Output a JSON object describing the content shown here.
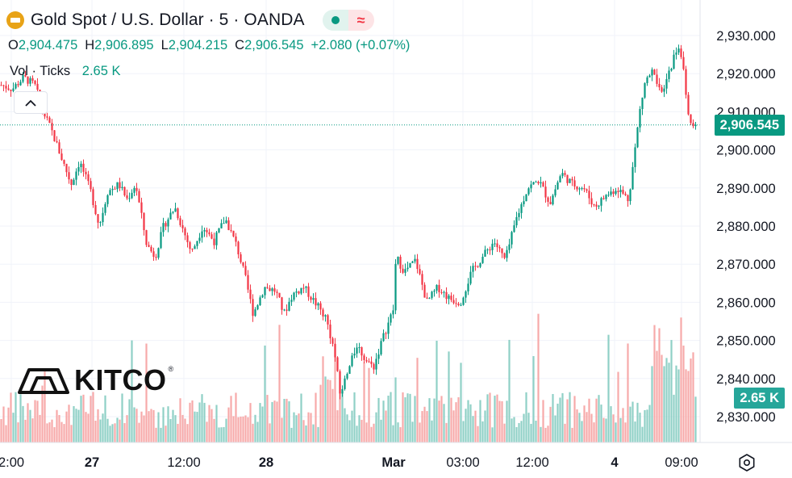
{
  "header": {
    "symbol_title": "Gold Spot / U.S. Dollar · 5 · OANDA",
    "ohlc": [
      {
        "key": "O",
        "value": "2,904.475"
      },
      {
        "key": "H",
        "value": "2,906.895"
      },
      {
        "key": "L",
        "value": "2,904.215"
      },
      {
        "key": "C",
        "value": "2,906.545"
      }
    ],
    "change": "+2.080 (+0.07%)",
    "volume_label": "Vol · Ticks",
    "volume_value": "2.65 K"
  },
  "price_tag": {
    "value": "2,906.545",
    "color": "#089981"
  },
  "volume_tag": {
    "value": "2.65 K",
    "color": "#26a69a"
  },
  "watermark": {
    "text": "KITCO",
    "registered": "®"
  },
  "colors": {
    "up": "#089981",
    "down": "#f23645",
    "vol_up": "#8fd0c6",
    "vol_down": "#f7a9a9",
    "grid": "#f0f3fa",
    "text": "#131722"
  },
  "chart_data": {
    "type": "candlestick",
    "title": "Gold Spot / U.S. Dollar · 5 · OANDA",
    "y_axis": {
      "ticks": [
        "2,930.000",
        "2,920.000",
        "2,910.000",
        "2,900.000",
        "2,890.000",
        "2,880.000",
        "2,870.000",
        "2,860.000",
        "2,850.000",
        "2,840.000",
        "2,830.000"
      ],
      "tick_values": [
        2930,
        2920,
        2910,
        2900,
        2890,
        2880,
        2870,
        2860,
        2850,
        2840,
        2830
      ],
      "range": [
        2825.5,
        2938.5
      ]
    },
    "x_axis": {
      "ticks": [
        "2:00",
        "27",
        "12:00",
        "28",
        "Mar",
        "03:00",
        "12:00",
        "4",
        "09:00"
      ],
      "bold": [
        "27",
        "28",
        "Mar",
        "4"
      ]
    },
    "price_path": {
      "description_note": "",
      "points": [
        {
          "t": 0,
          "p": 2917
        },
        {
          "t": 2,
          "p": 2916
        },
        {
          "t": 4,
          "p": 2919
        },
        {
          "t": 6,
          "p": 2917
        },
        {
          "t": 7.5,
          "p": 2910
        },
        {
          "t": 9,
          "p": 2905
        },
        {
          "t": 11,
          "p": 2897
        },
        {
          "t": 12.5,
          "p": 2891
        },
        {
          "t": 14,
          "p": 2897
        },
        {
          "t": 16,
          "p": 2889
        },
        {
          "t": 17.5,
          "p": 2880
        },
        {
          "t": 19,
          "p": 2889
        },
        {
          "t": 21,
          "p": 2891
        },
        {
          "t": 22.5,
          "p": 2887
        },
        {
          "t": 24,
          "p": 2891
        },
        {
          "t": 26,
          "p": 2875
        },
        {
          "t": 27.5,
          "p": 2872
        },
        {
          "t": 29,
          "p": 2880
        },
        {
          "t": 31,
          "p": 2885
        },
        {
          "t": 32.5,
          "p": 2879
        },
        {
          "t": 34,
          "p": 2873
        },
        {
          "t": 36,
          "p": 2880
        },
        {
          "t": 38,
          "p": 2876
        },
        {
          "t": 40,
          "p": 2882
        },
        {
          "t": 42,
          "p": 2875
        },
        {
          "t": 43.5,
          "p": 2867
        },
        {
          "t": 45,
          "p": 2857
        },
        {
          "t": 47,
          "p": 2864
        },
        {
          "t": 49,
          "p": 2863
        },
        {
          "t": 50.5,
          "p": 2857
        },
        {
          "t": 52,
          "p": 2862
        },
        {
          "t": 54,
          "p": 2864
        },
        {
          "t": 56,
          "p": 2860
        },
        {
          "t": 58,
          "p": 2856
        },
        {
          "t": 59.5,
          "p": 2847
        },
        {
          "t": 60.5,
          "p": 2836
        },
        {
          "t": 62,
          "p": 2842
        },
        {
          "t": 63.5,
          "p": 2849
        },
        {
          "t": 65,
          "p": 2845
        },
        {
          "t": 66.5,
          "p": 2843
        },
        {
          "t": 68,
          "p": 2850
        },
        {
          "t": 70,
          "p": 2858
        },
        {
          "t": 70.5,
          "p": 2872
        },
        {
          "t": 72,
          "p": 2868
        },
        {
          "t": 74,
          "p": 2871
        },
        {
          "t": 76,
          "p": 2860
        },
        {
          "t": 78,
          "p": 2864
        },
        {
          "t": 80,
          "p": 2861
        },
        {
          "t": 82,
          "p": 2860
        },
        {
          "t": 84,
          "p": 2868
        },
        {
          "t": 86,
          "p": 2872
        },
        {
          "t": 88,
          "p": 2876
        },
        {
          "t": 90,
          "p": 2871
        },
        {
          "t": 92,
          "p": 2882
        },
        {
          "t": 94,
          "p": 2890
        },
        {
          "t": 96,
          "p": 2892
        },
        {
          "t": 98,
          "p": 2886
        },
        {
          "t": 100,
          "p": 2894
        },
        {
          "t": 102,
          "p": 2891
        },
        {
          "t": 104,
          "p": 2890
        },
        {
          "t": 106,
          "p": 2885
        },
        {
          "t": 108,
          "p": 2888
        },
        {
          "t": 110,
          "p": 2890
        },
        {
          "t": 112,
          "p": 2887
        },
        {
          "t": 113,
          "p": 2898
        },
        {
          "t": 114,
          "p": 2910
        },
        {
          "t": 115,
          "p": 2918
        },
        {
          "t": 116.5,
          "p": 2921
        },
        {
          "t": 118,
          "p": 2914
        },
        {
          "t": 120,
          "p": 2924
        },
        {
          "t": 121,
          "p": 2927
        },
        {
          "t": 122,
          "p": 2919
        },
        {
          "t": 123,
          "p": 2906
        },
        {
          "t": 124,
          "p": 2907
        }
      ]
    },
    "last_price": 2906.545
  }
}
